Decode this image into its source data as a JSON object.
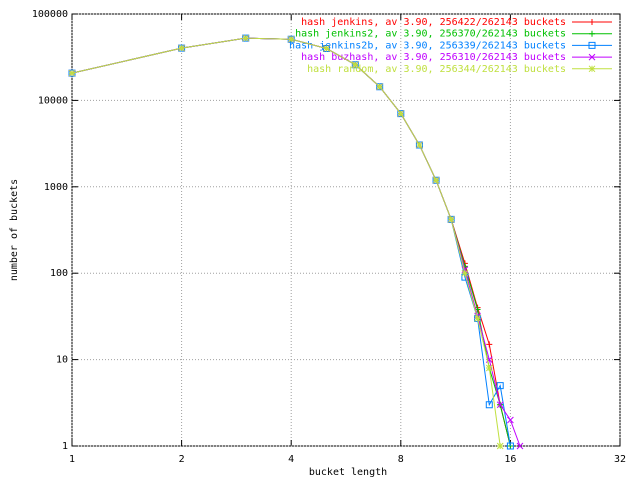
{
  "chart_data": {
    "type": "line",
    "x_label": "bucket length",
    "y_label": "number of buckets",
    "x_log": 2,
    "y_log": 10,
    "grid": true,
    "legend": "top-right",
    "xlim": [
      1,
      32
    ],
    "ylim": [
      1,
      100000
    ],
    "xticks": [
      1,
      2,
      4,
      8,
      16,
      32
    ],
    "yticks": [
      1,
      10,
      100,
      1000,
      10000,
      100000
    ],
    "x": [
      1,
      2,
      3,
      4,
      5,
      6,
      7,
      8,
      9,
      10,
      11,
      12,
      13,
      14,
      15,
      16,
      17
    ],
    "series": [
      {
        "name": "hash jenkins, av 3.90, 256422/262143 buckets",
        "color": "#ff0000",
        "marker": "plus",
        "values": [
          20700,
          40300,
          52500,
          51100,
          39900,
          25900,
          14400,
          7040,
          3050,
          1190,
          420,
          130,
          40,
          15,
          3,
          1,
          null
        ]
      },
      {
        "name": "hash jenkins2, av 3.90, 256370/262143 buckets",
        "color": "#00c000",
        "marker": "plus",
        "values": [
          20700,
          40300,
          52500,
          51100,
          39900,
          25900,
          14400,
          7040,
          3050,
          1190,
          420,
          120,
          38,
          8,
          3,
          1,
          null
        ]
      },
      {
        "name": "hash jenkins2b, av 3.90, 256339/262143 buckets",
        "color": "#0080ff",
        "marker": "square",
        "values": [
          20700,
          40300,
          52500,
          51100,
          39900,
          25900,
          14400,
          7040,
          3050,
          1190,
          420,
          90,
          30,
          3,
          5,
          1,
          null
        ]
      },
      {
        "name": "hash buzhash, av 3.90, 256310/262143 buckets",
        "color": "#c000ff",
        "marker": "x",
        "values": [
          20700,
          40300,
          52500,
          51100,
          39900,
          25900,
          14400,
          7040,
          3050,
          1190,
          420,
          110,
          32,
          10,
          3,
          2,
          1
        ]
      },
      {
        "name": "hash random, av 3.90, 256344/262143 buckets",
        "color": "#c0e040",
        "marker": "star",
        "values": [
          20700,
          40300,
          52500,
          51100,
          39900,
          25900,
          14400,
          7040,
          3050,
          1190,
          420,
          100,
          30,
          8,
          1,
          null,
          null
        ]
      }
    ]
  }
}
